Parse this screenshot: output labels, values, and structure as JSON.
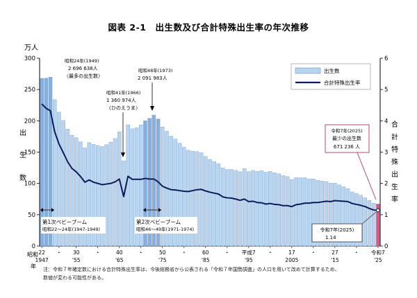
{
  "chart_data": {
    "type": "bar",
    "title": "図表 2-1　出生数及び合計特殊出生率の年次推移",
    "y_left_unit": "万人",
    "y_left_label": [
      "出",
      "生",
      "数"
    ],
    "y_right_label": [
      "合",
      "計",
      "特",
      "殊",
      "出",
      "生",
      "率"
    ],
    "ylim_left": [
      0,
      300
    ],
    "ylim_right": [
      0,
      6
    ],
    "y_left_ticks": [
      "0",
      "50",
      "100",
      "150",
      "200",
      "250",
      "300"
    ],
    "y_right_ticks": [
      "0",
      "1",
      "2",
      "3",
      "4",
      "5",
      "6"
    ],
    "x_labels_row1": [
      {
        "year": 1947,
        "text": "22"
      },
      {
        "year": 1951,
        "text": "・"
      },
      {
        "year": 1955,
        "text": "30"
      },
      {
        "year": 1960,
        "text": "・"
      },
      {
        "year": 1965,
        "text": "40"
      },
      {
        "year": 1970,
        "text": "・"
      },
      {
        "year": 1975,
        "text": "50"
      },
      {
        "year": 1980,
        "text": "・"
      },
      {
        "year": 1985,
        "text": "60"
      },
      {
        "year": 1990,
        "text": "・"
      },
      {
        "year": 1995,
        "text": "平成7"
      },
      {
        "year": 2000,
        "text": "・"
      },
      {
        "year": 2005,
        "text": "17"
      },
      {
        "year": 2010,
        "text": "・"
      },
      {
        "year": 2015,
        "text": "27"
      },
      {
        "year": 2020,
        "text": "・"
      },
      {
        "year": 2025,
        "text": "令和7"
      }
    ],
    "x_labels_row2": [
      {
        "year": 1947,
        "text": "1947"
      },
      {
        "year": 1955,
        "text": "'55"
      },
      {
        "year": 1965,
        "text": "'65"
      },
      {
        "year": 1975,
        "text": "'75"
      },
      {
        "year": 1985,
        "text": "'85"
      },
      {
        "year": 1995,
        "text": "'95"
      },
      {
        "year": 2005,
        "text": "2005"
      },
      {
        "year": 2015,
        "text": "'15"
      },
      {
        "year": 2025,
        "text": "'25"
      }
    ],
    "x_era_label": [
      "昭和",
      "年"
    ],
    "series": [
      {
        "name": "出生数",
        "unit": "万人",
        "color": "#b8d4ee",
        "years": [
          1947,
          1948,
          1949,
          1950,
          1951,
          1952,
          1953,
          1954,
          1955,
          1956,
          1957,
          1958,
          1959,
          1960,
          1961,
          1962,
          1963,
          1964,
          1965,
          1966,
          1967,
          1968,
          1969,
          1970,
          1971,
          1972,
          1973,
          1974,
          1975,
          1976,
          1977,
          1978,
          1979,
          1980,
          1981,
          1982,
          1983,
          1984,
          1985,
          1986,
          1987,
          1988,
          1989,
          1990,
          1991,
          1992,
          1993,
          1994,
          1995,
          1996,
          1997,
          1998,
          1999,
          2000,
          2001,
          2002,
          2003,
          2004,
          2005,
          2006,
          2007,
          2008,
          2009,
          2010,
          2011,
          2012,
          2013,
          2014,
          2015,
          2016,
          2017,
          2018,
          2019,
          2020,
          2021,
          2022,
          2023,
          2024,
          2025
        ],
        "values": [
          267.9,
          268.2,
          269.7,
          233.8,
          213.8,
          200.5,
          186.8,
          177.0,
          173.1,
          166.5,
          156.7,
          165.3,
          162.6,
          160.6,
          158.9,
          161.9,
          166.0,
          171.7,
          182.4,
          136.1,
          193.5,
          187.2,
          188.9,
          193.4,
          200.1,
          203.9,
          209.2,
          203.0,
          190.1,
          183.3,
          175.5,
          170.9,
          164.3,
          157.7,
          152.9,
          151.5,
          150.9,
          149.0,
          143.2,
          138.3,
          134.7,
          131.4,
          124.7,
          122.2,
          122.3,
          120.9,
          118.8,
          123.8,
          118.7,
          120.7,
          119.2,
          120.3,
          117.8,
          119.1,
          117.1,
          115.4,
          112.4,
          111.1,
          106.3,
          109.3,
          109.0,
          109.1,
          107.0,
          107.1,
          105.1,
          103.7,
          103.0,
          100.4,
          100.6,
          97.7,
          94.6,
          91.8,
          86.5,
          84.1,
          81.2,
          77.1,
          72.7,
          68.6,
          67.1
        ]
      },
      {
        "name": "合計特殊出生率",
        "color": "#0a1a5c",
        "years": [
          1947,
          1948,
          1949,
          1950,
          1951,
          1952,
          1953,
          1954,
          1955,
          1956,
          1957,
          1958,
          1959,
          1960,
          1961,
          1962,
          1963,
          1964,
          1965,
          1966,
          1967,
          1968,
          1969,
          1970,
          1971,
          1972,
          1973,
          1974,
          1975,
          1976,
          1977,
          1978,
          1979,
          1980,
          1981,
          1982,
          1983,
          1984,
          1985,
          1986,
          1987,
          1988,
          1989,
          1990,
          1991,
          1992,
          1993,
          1994,
          1995,
          1996,
          1997,
          1998,
          1999,
          2000,
          2001,
          2002,
          2003,
          2004,
          2005,
          2006,
          2007,
          2008,
          2009,
          2010,
          2011,
          2012,
          2013,
          2014,
          2015,
          2016,
          2017,
          2018,
          2019,
          2020,
          2021,
          2022,
          2023,
          2024,
          2025
        ],
        "values": [
          4.54,
          4.4,
          4.32,
          3.65,
          3.26,
          2.98,
          2.69,
          2.48,
          2.37,
          2.22,
          2.04,
          2.11,
          2.04,
          2.0,
          1.96,
          1.98,
          2.0,
          2.05,
          2.14,
          1.58,
          2.23,
          2.13,
          2.13,
          2.13,
          2.16,
          2.14,
          2.14,
          2.05,
          1.91,
          1.85,
          1.8,
          1.79,
          1.77,
          1.75,
          1.74,
          1.77,
          1.8,
          1.81,
          1.76,
          1.72,
          1.69,
          1.66,
          1.57,
          1.54,
          1.53,
          1.5,
          1.46,
          1.5,
          1.42,
          1.43,
          1.39,
          1.38,
          1.34,
          1.36,
          1.33,
          1.32,
          1.29,
          1.29,
          1.26,
          1.32,
          1.34,
          1.37,
          1.37,
          1.39,
          1.39,
          1.41,
          1.43,
          1.42,
          1.45,
          1.44,
          1.43,
          1.42,
          1.36,
          1.33,
          1.3,
          1.26,
          1.2,
          1.15,
          1.14
        ]
      }
    ],
    "highlight_years": [
      1947,
      1948,
      1949,
      1971,
      1972,
      1973,
      1974
    ],
    "highlight_color": "#88aedd",
    "last_bar_color": "#e0557c",
    "annotations": [
      {
        "id": "peak",
        "lines": [
          "昭和24年(1949)",
          "2 696 638人",
          "〈最多の出生数〉"
        ]
      },
      {
        "id": "1973",
        "lines": [
          "昭和48年(1973)",
          "2 091 983人"
        ]
      },
      {
        "id": "1966",
        "lines": [
          "昭和41年(1966)",
          "1 360 974人",
          "〈ひのえうま〉"
        ]
      },
      {
        "id": "boom1",
        "lines": [
          "第1次ベビーブーム",
          "昭和22～24年(1947-1949)"
        ]
      },
      {
        "id": "boom2",
        "lines": [
          "第2次ベビーブーム",
          "昭和46～49年(1971-1974)"
        ]
      },
      {
        "id": "min_births",
        "lines": [
          "令和7年(2025)",
          "最少の出生数",
          "671 236 人"
        ]
      },
      {
        "id": "tfr2025",
        "lines": [
          "令和7年(2025)",
          "1.14"
        ]
      }
    ],
    "legend_position": "top-right",
    "note": "注：令和７年確定数における合計特殊出生率は、今後総務省から公表される「令和７年国勢調査」の人口を用いて改めて計算するため、\n数値が変わる可能性がある。"
  }
}
